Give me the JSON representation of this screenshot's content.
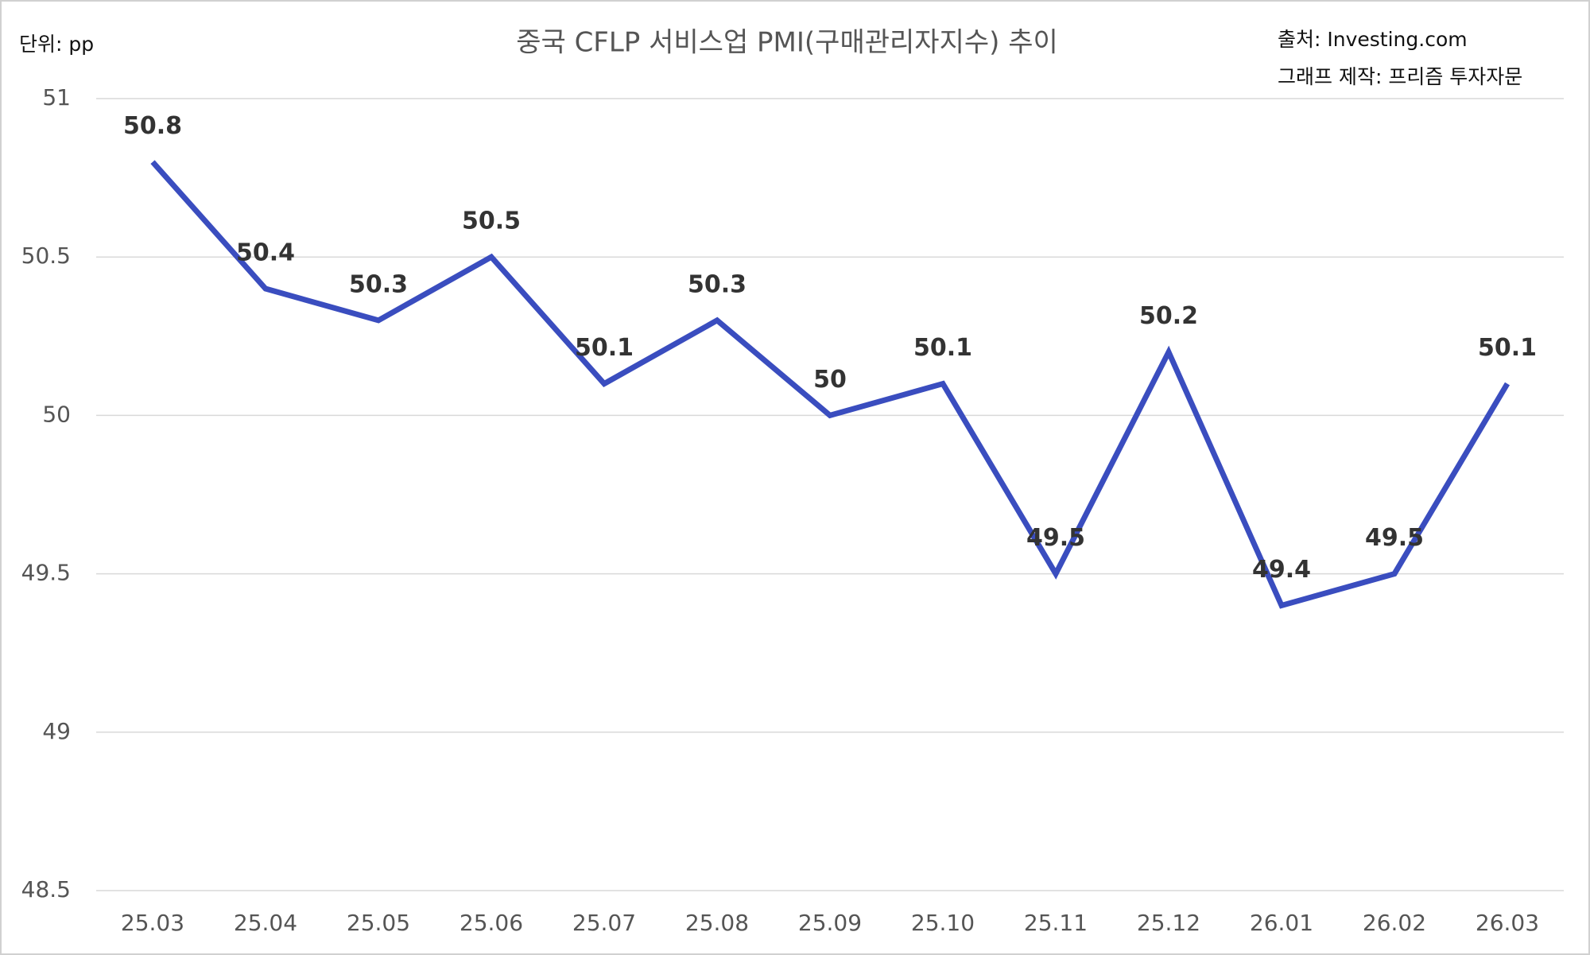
{
  "chart_data": {
    "type": "line",
    "title": "중국 CFLP 서비스업 PMI(구매관리자지수) 추이",
    "unit_label": "단위: pp",
    "source": "출처: Investing.com",
    "credit": "그래프 제작: 프리즘 투자자문",
    "categories": [
      "25.03",
      "25.04",
      "25.05",
      "25.06",
      "25.07",
      "25.08",
      "25.09",
      "25.10",
      "25.11",
      "25.12",
      "26.01",
      "26.02",
      "26.03"
    ],
    "values": [
      50.8,
      50.4,
      50.3,
      50.5,
      50.1,
      50.3,
      50,
      50.1,
      49.5,
      50.2,
      49.4,
      49.5,
      50.1
    ],
    "color": "#3a4dbf",
    "ylim": [
      48.5,
      51
    ],
    "yticks": [
      48.5,
      49,
      49.5,
      50,
      50.5,
      51
    ],
    "grid": true
  }
}
